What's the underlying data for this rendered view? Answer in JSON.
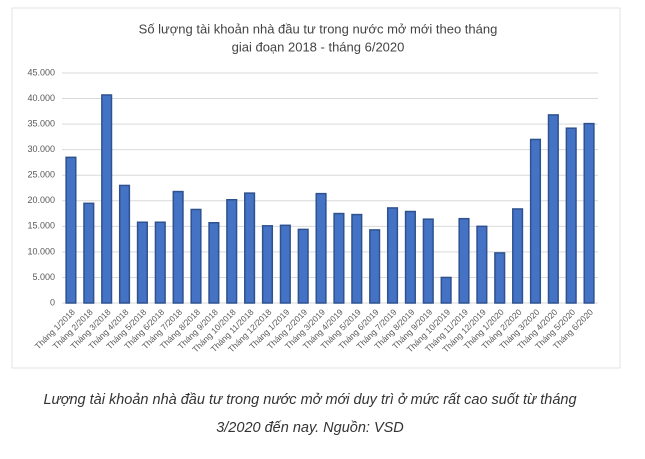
{
  "chart_data": {
    "type": "bar",
    "title": [
      "Số lượng tài khoản nhà đầu tư trong nước mở mới theo tháng",
      "giai đoạn 2018 - tháng 6/2020"
    ],
    "categories": [
      "Tháng 1/2018",
      "Tháng 2/2018",
      "Tháng 3/2018",
      "Tháng 4/2018",
      "Tháng 5/2018",
      "Tháng 6/2018",
      "Tháng 7/2018",
      "Tháng 8/2018",
      "Tháng 9/2018",
      "Tháng 10/2018",
      "Tháng 11/2018",
      "Tháng 12/2018",
      "Tháng 1/2019",
      "Tháng 2/2019",
      "Tháng 3/2019",
      "Tháng 4/2019",
      "Tháng 5/2019",
      "Tháng 6/2019",
      "Tháng 7/2019",
      "Tháng 8/2019",
      "Tháng 9/2019",
      "Tháng 10/2019",
      "Tháng 11/2019",
      "Tháng 12/2019",
      "Tháng 1/2020",
      "Tháng 2/2020",
      "Tháng 3/2020",
      "Tháng 4/2020",
      "Tháng 5/2020",
      "Tháng 6/2020"
    ],
    "values": [
      28500,
      19500,
      40700,
      23000,
      15800,
      15800,
      21800,
      18300,
      15700,
      20200,
      21500,
      15100,
      15200,
      14400,
      21400,
      17500,
      17300,
      14300,
      18600,
      17900,
      16400,
      5000,
      16500,
      15000,
      9800,
      18400,
      32000,
      36800,
      34200,
      35100
    ],
    "color": "#4472c4",
    "ylim": [
      0,
      45000
    ],
    "yticks": [
      0,
      {
        "value": 5000,
        "label": "5.000"
      },
      {
        "value": 10000,
        "label": "10.000"
      },
      {
        "value": 15000,
        "label": "15.000"
      },
      {
        "value": 20000,
        "label": "20.000"
      },
      {
        "value": 25000,
        "label": "25.000"
      },
      {
        "value": 30000,
        "label": "30.000"
      },
      {
        "value": 35000,
        "label": "35.000"
      },
      {
        "value": 40000,
        "label": "40.000"
      },
      {
        "value": 45000,
        "label": "45.000"
      }
    ],
    "grid": true
  },
  "caption": [
    "Lượng tài khoản nhà đầu tư trong nước mở mới duy trì ở mức rất cao suốt từ tháng",
    "3/2020 đến nay. Nguồn: VSD"
  ]
}
